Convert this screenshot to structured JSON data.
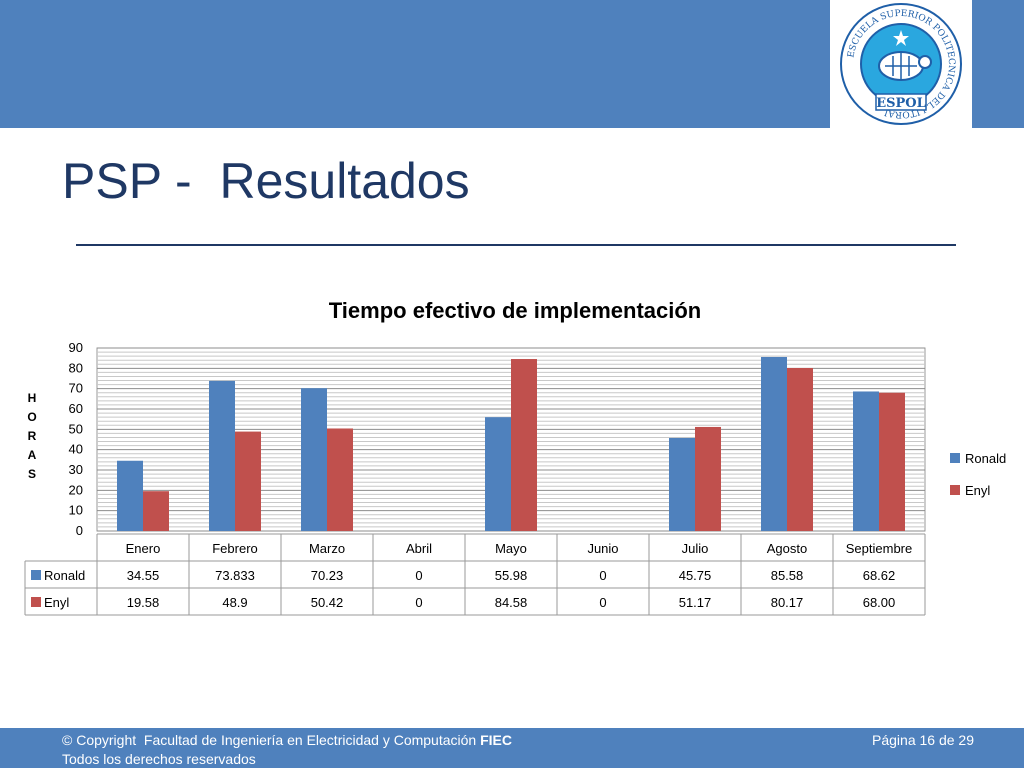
{
  "slide": {
    "title": "PSP -  Resultados"
  },
  "logo": {
    "text_ring": "ESCUELA SUPERIOR POLITECNICA DEL LITORAL",
    "name": "ESPOL"
  },
  "footer": {
    "copyright": "© Copyright  Facultad de Ingeniería en Electricidad y Computación ",
    "faculty_abbr": "FIEC",
    "rights": "Todos los derechos reservados",
    "page": "Página 16 de 29"
  },
  "colors": {
    "header_bar": "#4f81bd",
    "title": "#1f3864",
    "ronald": "#4f81bd",
    "enyl": "#c0504d"
  },
  "chart_data": {
    "type": "bar",
    "title": "Tiempo efectivo de implementación",
    "ylabel": "HORAS",
    "xlabel": "",
    "ylim": [
      0,
      90
    ],
    "yticks": [
      0,
      10,
      20,
      30,
      40,
      50,
      60,
      70,
      80,
      90
    ],
    "grid": true,
    "legend": "right",
    "categories": [
      "Enero",
      "Febrero",
      "Marzo",
      "Abril",
      "Mayo",
      "Junio",
      "Julio",
      "Agosto",
      "Septiembre"
    ],
    "series": [
      {
        "name": "Ronald",
        "color": "#4f81bd",
        "values": [
          34.55,
          73.833,
          70.23,
          0,
          55.98,
          0,
          45.75,
          85.58,
          68.62
        ],
        "labels": [
          "34.55",
          "73.833",
          "70.23",
          "0",
          "55.98",
          "0",
          "45.75",
          "85.58",
          "68.62"
        ]
      },
      {
        "name": "Enyl",
        "color": "#c0504d",
        "values": [
          19.58,
          48.9,
          50.42,
          0,
          84.58,
          0,
          51.17,
          80.17,
          68.0
        ],
        "labels": [
          "19.58",
          "48.9",
          "50.42",
          "0",
          "84.58",
          "0",
          "51.17",
          "80.17",
          "68.00"
        ]
      }
    ]
  }
}
